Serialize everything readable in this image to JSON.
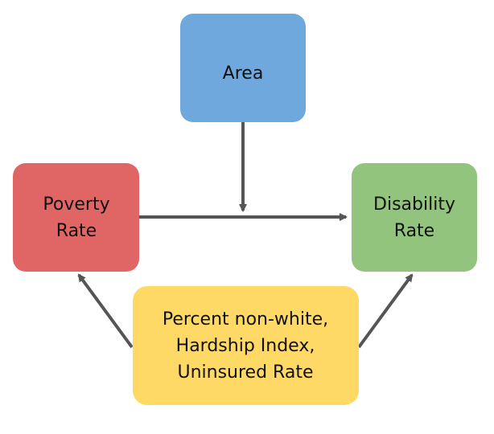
{
  "nodes": {
    "area": {
      "lines": [
        "Area"
      ],
      "color": "#6fa8dc"
    },
    "poverty_rate": {
      "lines": [
        "Poverty",
        "Rate"
      ],
      "color": "#e06666"
    },
    "disability_rate": {
      "lines": [
        "Disability",
        "Rate"
      ],
      "color": "#93c47d"
    },
    "confounders": {
      "lines": [
        "Percent non-white,",
        "Hardship Index,",
        "Uninsured Rate"
      ],
      "color": "#ffd966"
    }
  },
  "edge_color": "#555555"
}
